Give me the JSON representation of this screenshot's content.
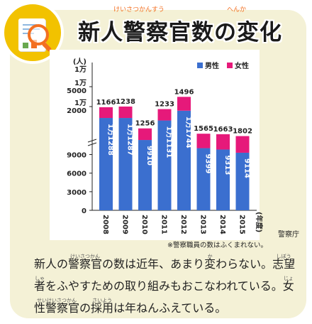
{
  "title": {
    "text": "新人警察官数の変化",
    "ruby_keisatsukansuu": "けいさつかんすう",
    "ruby_henka": "へんか"
  },
  "chart_data": {
    "type": "bar",
    "stacked": true,
    "categories": [
      "2008",
      "2009",
      "2010",
      "2011",
      "2012",
      "2013",
      "2014",
      "2015"
    ],
    "series": [
      {
        "name": "男性",
        "color": "#3b6fcf",
        "values": [
          11288,
          11287,
          9910,
          11131,
          11744,
          9399,
          9313,
          9114
        ],
        "labels": [
          "1万1288",
          "1万1287",
          "9910",
          "1万1131",
          "1万1744",
          "9399",
          "9313",
          "9114"
        ]
      },
      {
        "name": "女性",
        "color": "#e6197a",
        "values": [
          1166,
          1238,
          1256,
          1233,
          1496,
          1565,
          1663,
          1802
        ],
        "labels": [
          "1166",
          "1238",
          "1256",
          "1233",
          "1496",
          "1565",
          "1663",
          "1802"
        ]
      }
    ],
    "y_unit": "(人)",
    "x_unit": "(年度)",
    "y_ticks": [
      "0",
      "3000",
      "6000",
      "9000",
      "1万\n2000",
      "1万\n5000",
      "1万"
    ],
    "legend_position": "top-right",
    "grid": false
  },
  "source": "警察庁",
  "note": "※警察職員の数はふくまれない。",
  "body": {
    "line1_parts": [
      "新人の",
      "警察官",
      "の数は",
      "近年",
      "、あまり",
      "変",
      "わらない。",
      "志望"
    ],
    "ruby_keisatsukan": "けいさつかん",
    "ruby_ka": "か",
    "ruby_shibou": "しぼう",
    "line2_parts": [
      "者",
      "をふやすための取り組みもおこなわれている。",
      "女"
    ],
    "ruby_sha": "しゃ",
    "ruby_jo": "じょ",
    "line3_parts": [
      "性警察官",
      "の",
      "採用",
      "は年ねんふえている。"
    ],
    "ruby_seikeisatsukan": "せいけいさつかん",
    "ruby_saiyou": "さいよう"
  }
}
